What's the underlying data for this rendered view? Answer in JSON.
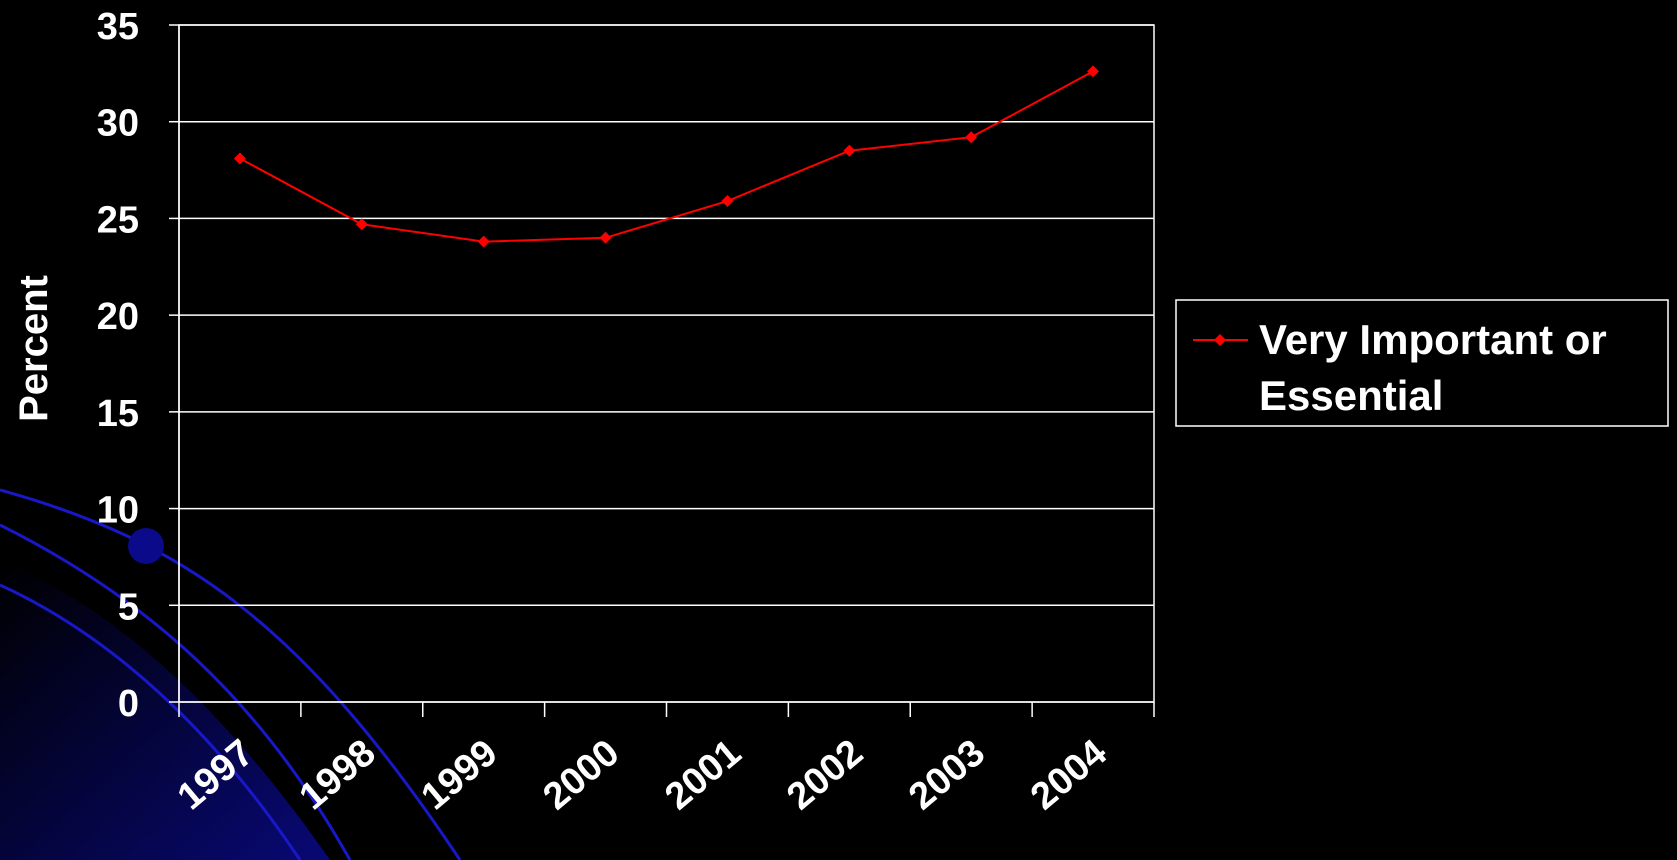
{
  "chart_data": {
    "type": "line",
    "categories": [
      "1997",
      "1998",
      "1999",
      "2000",
      "2001",
      "2002",
      "2003",
      "2004"
    ],
    "series": [
      {
        "name": "Very Important or Essential",
        "values": [
          28.1,
          24.7,
          23.8,
          24.0,
          25.9,
          28.5,
          29.2,
          32.6
        ],
        "color": "#ff0000"
      }
    ],
    "ylabel": "Percent",
    "xlabel": "",
    "ylim": [
      0,
      35
    ],
    "yticks": [
      0,
      5,
      10,
      15,
      20,
      25,
      30,
      35
    ],
    "grid": true,
    "legend_position": "right"
  },
  "colors": {
    "background": "#000000",
    "axes": "#ffffff",
    "gridlines": "#ffffff",
    "decoration": "#0a0a8a"
  }
}
